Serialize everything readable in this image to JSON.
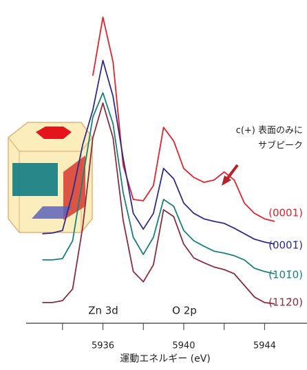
{
  "chart_data": {
    "type": "line",
    "x": [
      5933,
      5933.5,
      5934,
      5934.5,
      5935,
      5935.5,
      5936,
      5936.5,
      5937,
      5937.5,
      5938,
      5938.5,
      5939,
      5939.5,
      5940,
      5940.5,
      5941,
      5941.5,
      5942,
      5942.5,
      5943,
      5943.5,
      5944,
      5944.5
    ],
    "series": [
      {
        "name": "(0001)",
        "color": "#e8202a",
        "values": [
          null,
          null,
          null,
          null,
          null,
          76.6,
          94.7,
          80.9,
          48.9,
          38.3,
          37.9,
          42.6,
          60.6,
          56.4,
          47.9,
          45.1,
          43.6,
          44.3,
          46.8,
          44.3,
          37.2,
          34.0,
          32.3,
          31.5
        ]
      },
      {
        "name": "(0001̄)",
        "color": "#2b2b8f",
        "values": [
          27.7,
          27.9,
          28.7,
          40.4,
          55.3,
          66.0,
          81.3,
          70.2,
          51.1,
          34.0,
          29.1,
          34.0,
          47.9,
          44.7,
          37.2,
          34.0,
          32.3,
          31.5,
          30.9,
          29.4,
          27.7,
          26.0,
          25.1,
          24.5
        ]
      },
      {
        "name": "(101̄0)",
        "color": "#17807d",
        "values": [
          19.6,
          19.6,
          20.0,
          25.5,
          44.7,
          63.8,
          71.3,
          61.7,
          40.4,
          26.6,
          21.3,
          26.6,
          38.3,
          36.2,
          28.7,
          25.5,
          23.8,
          22.3,
          21.7,
          20.9,
          19.6,
          17.0,
          16.0,
          15.3
        ]
      },
      {
        "name": "(112̄0)",
        "color": "#8c2b3c",
        "values": [
          6.4,
          6.4,
          7.0,
          10.6,
          29.8,
          57.4,
          68.1,
          57.4,
          31.9,
          16.0,
          12.8,
          18.1,
          35.1,
          33.0,
          24.5,
          20.2,
          18.7,
          17.4,
          16.6,
          15.3,
          11.7,
          8.1,
          6.4,
          6.0
        ]
      }
    ],
    "xlim": [
      5932.2,
      5946.1
    ],
    "ylim": [
      0,
      100
    ],
    "xticks": [
      5936,
      5940,
      5944
    ],
    "xminorticks": [
      5934,
      5938,
      5942
    ],
    "xlabel": "運動エネルギー (eV)",
    "annotations": [
      "c(+) 表面のみに",
      "サブピーク",
      "Zn 3d",
      "O 2p"
    ]
  }
}
